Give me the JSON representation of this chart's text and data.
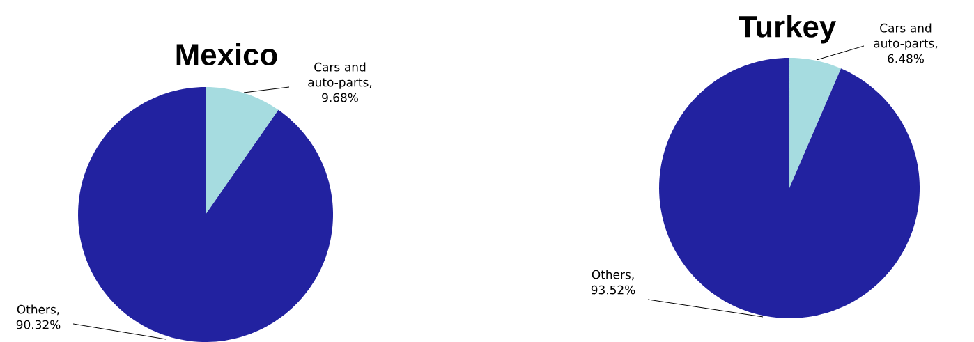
{
  "chart_data": [
    {
      "type": "pie",
      "title": "Mexico",
      "categories": [
        "Cars and auto-parts",
        "Others"
      ],
      "values": [
        9.68,
        90.32
      ],
      "colors": [
        "#a6dce0",
        "#2222a0"
      ],
      "value_labels": [
        ", 9.68%",
        ", 90.32%"
      ]
    },
    {
      "type": "pie",
      "title": "Turkey",
      "categories": [
        "Cars and auto-parts",
        "Others"
      ],
      "values": [
        6.48,
        93.52
      ],
      "colors": [
        "#a6dce0",
        "#2222a0"
      ],
      "value_labels": [
        ", 6.48%",
        ", 93.52%"
      ]
    }
  ]
}
